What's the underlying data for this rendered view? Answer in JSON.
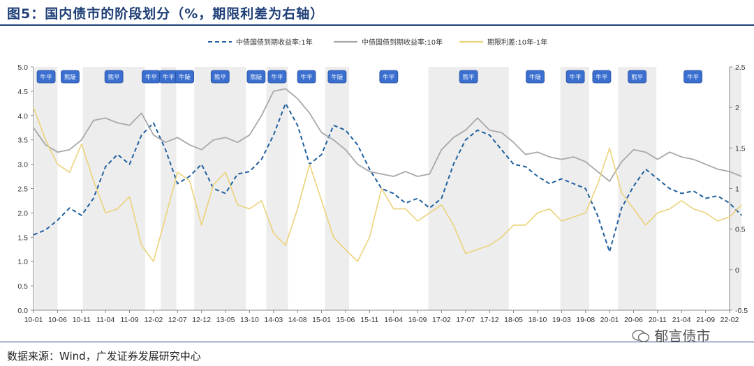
{
  "header": {
    "title": "图5：国内债市的阶段划分（%，期限利差为右轴）",
    "source": "数据来源：Wind，广发证券发展研究中心",
    "watermark": "郁言债市"
  },
  "colors": {
    "title": "#1f3f77",
    "series_1y": "#1f5f9e",
    "series_10y": "#a8a8a8",
    "series_spread": "#ecd27a",
    "phase_box": "#3a6fd0",
    "shade": "#ededed"
  },
  "chart_data": {
    "type": "line",
    "title": "国内债市的阶段划分（%，期限利差为右轴）",
    "x_ticks": [
      "10-01",
      "10-06",
      "10-11",
      "11-04",
      "11-09",
      "12-02",
      "12-07",
      "12-12",
      "13-05",
      "13-10",
      "14-03",
      "14-08",
      "15-01",
      "15-06",
      "15-11",
      "16-04",
      "16-09",
      "17-02",
      "17-07",
      "17-12",
      "18-05",
      "18-10",
      "19-03",
      "19-08",
      "20-01",
      "20-06",
      "20-11",
      "21-04",
      "21-09",
      "22-02"
    ],
    "y_left_ticks": [
      "0.0",
      "0.5",
      "1.0",
      "1.5",
      "2.0",
      "2.5",
      "3.0",
      "3.5",
      "4.0",
      "4.5",
      "5.0"
    ],
    "y_left_range": [
      0,
      5
    ],
    "y_right_ticks": [
      "-0.5",
      "0",
      "0.5",
      "1",
      "1.5",
      "2",
      "2.5"
    ],
    "y_right_range": [
      -0.5,
      2.5
    ],
    "series": [
      {
        "name": "中债国债到期收益率:1年",
        "axis": "left",
        "style": "dashed",
        "x": [
          0,
          0.5,
          1,
          1.5,
          2,
          2.5,
          3,
          3.5,
          4,
          4.5,
          5,
          5.5,
          6,
          6.5,
          7,
          7.5,
          8,
          8.5,
          9,
          9.5,
          10,
          10.5,
          11,
          11.5,
          12,
          12.5,
          13,
          13.5,
          14,
          14.5,
          15,
          15.5,
          16,
          16.5,
          17,
          17.5,
          18,
          18.5,
          19,
          19.5,
          20,
          20.5,
          21,
          21.5,
          22,
          22.5,
          23,
          23.5,
          24,
          24.5,
          25,
          25.5,
          26,
          26.5,
          27,
          27.5,
          28,
          28.5,
          29,
          29.5
        ],
        "values": [
          1.55,
          1.65,
          1.85,
          2.1,
          1.95,
          2.3,
          2.95,
          3.2,
          3.0,
          3.6,
          3.85,
          3.3,
          2.6,
          2.75,
          3.0,
          2.5,
          2.4,
          2.8,
          2.85,
          3.1,
          3.6,
          4.25,
          3.8,
          3.0,
          3.2,
          3.8,
          3.7,
          3.4,
          2.9,
          2.5,
          2.4,
          2.2,
          2.3,
          2.1,
          2.3,
          3.0,
          3.5,
          3.7,
          3.6,
          3.3,
          3.0,
          2.95,
          2.75,
          2.6,
          2.7,
          2.6,
          2.5,
          1.95,
          1.2,
          2.1,
          2.55,
          2.9,
          2.7,
          2.5,
          2.4,
          2.45,
          2.3,
          2.35,
          2.2,
          1.95
        ]
      },
      {
        "name": "中债国债到期收益率:10年",
        "axis": "left",
        "style": "solid",
        "x": [
          0,
          0.5,
          1,
          1.5,
          2,
          2.5,
          3,
          3.5,
          4,
          4.5,
          5,
          5.5,
          6,
          6.5,
          7,
          7.5,
          8,
          8.5,
          9,
          9.5,
          10,
          10.5,
          11,
          11.5,
          12,
          12.5,
          13,
          13.5,
          14,
          14.5,
          15,
          15.5,
          16,
          16.5,
          17,
          17.5,
          18,
          18.5,
          19,
          19.5,
          20,
          20.5,
          21,
          21.5,
          22,
          22.5,
          23,
          23.5,
          24,
          24.5,
          25,
          25.5,
          26,
          26.5,
          27,
          27.5,
          28,
          28.5,
          29,
          29.5
        ],
        "values": [
          3.75,
          3.4,
          3.25,
          3.3,
          3.5,
          3.9,
          3.95,
          3.85,
          3.8,
          4.05,
          3.6,
          3.45,
          3.55,
          3.4,
          3.3,
          3.5,
          3.55,
          3.45,
          3.6,
          4.0,
          4.5,
          4.55,
          4.35,
          4.05,
          3.65,
          3.5,
          3.3,
          3.0,
          2.85,
          2.8,
          2.75,
          2.85,
          2.75,
          2.8,
          3.3,
          3.55,
          3.7,
          3.95,
          3.7,
          3.65,
          3.45,
          3.2,
          3.25,
          3.15,
          3.1,
          3.15,
          3.05,
          2.85,
          2.65,
          3.05,
          3.3,
          3.25,
          3.1,
          3.25,
          3.15,
          3.1,
          3.0,
          2.9,
          2.85,
          2.75
        ]
      },
      {
        "name": "期限利差:10年-1年",
        "axis": "right",
        "style": "solid",
        "x": [
          0,
          0.5,
          1,
          1.5,
          2,
          2.5,
          3,
          3.5,
          4,
          4.5,
          5,
          5.5,
          6,
          6.5,
          7,
          7.5,
          8,
          8.5,
          9,
          9.5,
          10,
          10.5,
          11,
          11.5,
          12,
          12.5,
          13,
          13.5,
          14,
          14.5,
          15,
          15.5,
          16,
          16.5,
          17,
          17.5,
          18,
          18.5,
          19,
          19.5,
          20,
          20.5,
          21,
          21.5,
          22,
          22.5,
          23,
          23.5,
          24,
          24.5,
          25,
          25.5,
          26,
          26.5,
          27,
          27.5,
          28,
          28.5,
          29,
          29.5
        ],
        "values": [
          2.0,
          1.6,
          1.3,
          1.2,
          1.55,
          1.1,
          0.7,
          0.75,
          0.9,
          0.3,
          0.1,
          0.65,
          1.2,
          1.1,
          0.55,
          1.05,
          1.2,
          0.8,
          0.75,
          0.85,
          0.45,
          0.3,
          0.75,
          1.3,
          0.85,
          0.4,
          0.25,
          0.1,
          0.4,
          1.0,
          0.75,
          0.75,
          0.6,
          0.7,
          0.8,
          0.55,
          0.2,
          0.25,
          0.3,
          0.4,
          0.55,
          0.55,
          0.7,
          0.75,
          0.6,
          0.65,
          0.7,
          1.05,
          1.5,
          0.95,
          0.75,
          0.55,
          0.7,
          0.75,
          0.85,
          0.75,
          0.7,
          0.6,
          0.65,
          0.8
        ]
      }
    ],
    "phases": [
      {
        "label": "牛平",
        "start": 0.05,
        "end": 1.0
      },
      {
        "label": "熊陡",
        "start": 1.05,
        "end": 2.0
      },
      {
        "label": "熊平",
        "start": 2.05,
        "end": 4.65
      },
      {
        "label": "牛平",
        "start": 4.7,
        "end": 5.1
      },
      {
        "label": "牛平",
        "start": 5.3,
        "end": 5.95
      },
      {
        "label": "牛陡",
        "start": 5.95,
        "end": 6.65
      },
      {
        "label": "熊平",
        "start": 6.7,
        "end": 8.85
      },
      {
        "label": "熊陡",
        "start": 8.85,
        "end": 9.7
      },
      {
        "label": "牛平",
        "start": 9.7,
        "end": 10.6
      },
      {
        "label": "牛平",
        "start": 10.6,
        "end": 12.15
      },
      {
        "label": "牛陡",
        "start": 12.15,
        "end": 13.15
      },
      {
        "label": "牛平",
        "start": 13.2,
        "end": 16.4
      },
      {
        "label": "熊平",
        "start": 16.45,
        "end": 19.8
      },
      {
        "label": "牛陡",
        "start": 19.85,
        "end": 21.95
      },
      {
        "label": "牛平",
        "start": 22.0,
        "end": 23.15
      },
      {
        "label": "牛平",
        "start": 23.2,
        "end": 24.15
      },
      {
        "label": "熊平",
        "start": 24.35,
        "end": 25.95
      },
      {
        "label": "牛平",
        "start": 25.95,
        "end": 29.0
      }
    ],
    "shaded_ranges": [
      [
        0.05,
        1.0
      ],
      [
        2.05,
        4.65
      ],
      [
        5.3,
        5.95
      ],
      [
        6.7,
        8.85
      ],
      [
        9.7,
        10.6
      ],
      [
        12.15,
        13.15
      ],
      [
        16.45,
        19.8
      ],
      [
        21.95,
        23.15
      ],
      [
        24.35,
        25.95
      ],
      [
        29.0,
        29.5
      ]
    ]
  }
}
